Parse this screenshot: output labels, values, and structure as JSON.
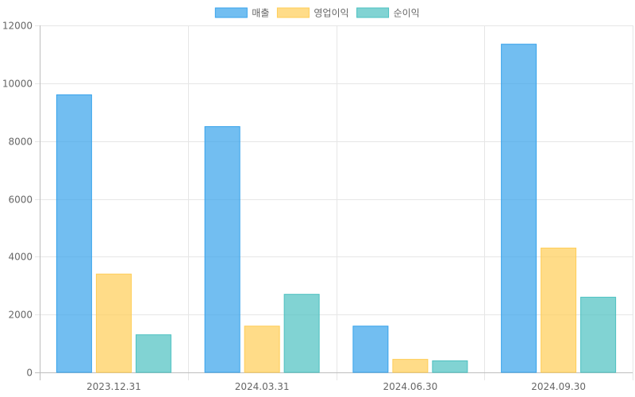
{
  "chart_data": {
    "type": "bar",
    "categories": [
      "2023.12.31",
      "2024.03.31",
      "2024.06.30",
      "2024.09.30"
    ],
    "series": [
      {
        "name": "매출",
        "values": [
          9600,
          8500,
          1600,
          11350
        ],
        "fill": "#36a2eb",
        "border": "#36a2eb"
      },
      {
        "name": "영업이익",
        "values": [
          3400,
          1600,
          450,
          4300
        ],
        "fill": "#ffcd56",
        "border": "#ffcd56"
      },
      {
        "name": "순이익",
        "values": [
          1300,
          2700,
          400,
          2600
        ],
        "fill": "#4bc0c0",
        "border": "#4bc0c0"
      }
    ],
    "ylim": [
      0,
      12000
    ],
    "yticks": [
      0,
      2000,
      4000,
      6000,
      8000,
      10000,
      12000
    ],
    "grid": true,
    "legend_position": "top-center",
    "title": "",
    "xlabel": "",
    "ylabel": ""
  }
}
